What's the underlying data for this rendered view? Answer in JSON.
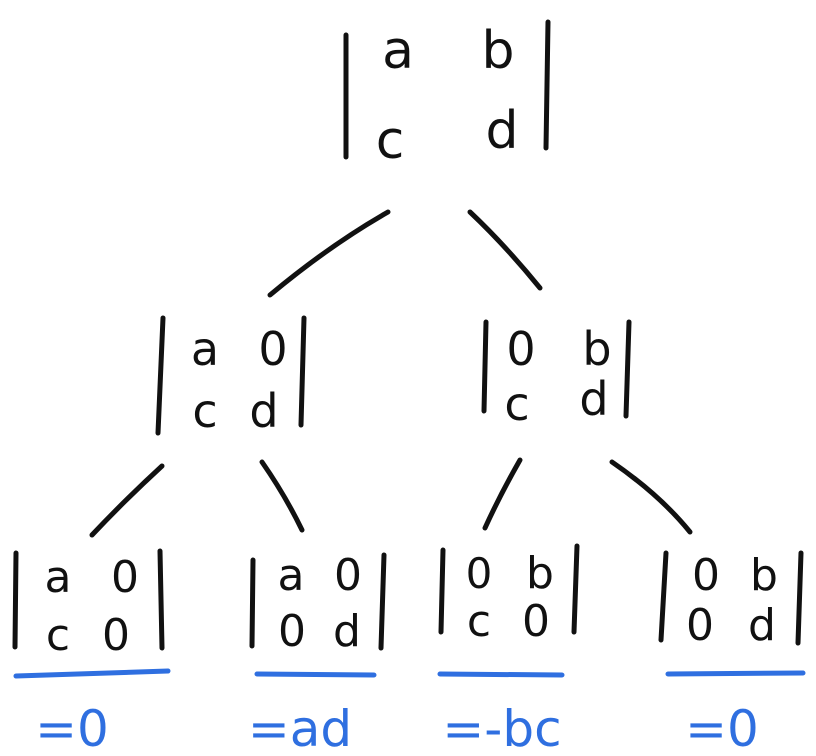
{
  "colors": {
    "ink": "#111111",
    "accent": "#2f6fe0",
    "background": "#ffffff"
  },
  "root": {
    "cells": [
      "a",
      "b",
      "c",
      "d"
    ]
  },
  "level1": [
    {
      "cells": [
        "a",
        "0",
        "c",
        "d"
      ]
    },
    {
      "cells": [
        "0",
        "b",
        "c",
        "d"
      ]
    }
  ],
  "level2": [
    {
      "cells": [
        "a",
        "0",
        "c",
        "0"
      ],
      "result": "=0"
    },
    {
      "cells": [
        "a",
        "0",
        "0",
        "d"
      ],
      "result": "=ad"
    },
    {
      "cells": [
        "0",
        "b",
        "c",
        "0"
      ],
      "result": "=-bc"
    },
    {
      "cells": [
        "0",
        "b",
        "0",
        "d"
      ],
      "result": "=0"
    }
  ]
}
